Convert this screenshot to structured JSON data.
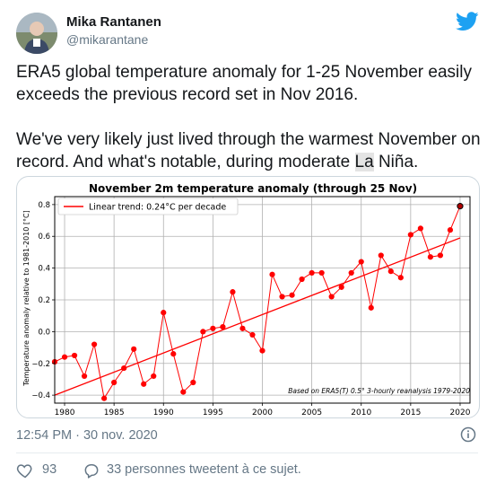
{
  "author": {
    "name": "Mika Rantanen",
    "handle": "@mikarantane"
  },
  "tweet": {
    "paragraph1": "ERA5 global temperature anomaly for 1-25 November easily exceeds the previous record set in Nov 2016.",
    "paragraph2_pre": "We've very likely just lived through the warmest November on record. And what's notable, during moderate ",
    "paragraph2_highlight": "La",
    "paragraph2_post": " Niña."
  },
  "timestamp": "12:54 PM · 30 nov. 2020",
  "likes": {
    "count": "93"
  },
  "retweets": {
    "label": "33 personnes tweetent à ce sujet."
  },
  "icons": {
    "bird": "twitter-bird-icon",
    "info": "info-icon",
    "heart": "heart-icon",
    "reply": "speech-bubble-icon"
  },
  "colors": {
    "twitter_blue": "#1da1f2",
    "series": "#ff0000",
    "text_secondary": "#657786"
  },
  "chart_data": {
    "type": "line",
    "title": "November 2m temperature anomaly (through 25 Nov)",
    "ylabel": "Temperature anomaly relative to 1981-2010 [°C]",
    "xlabel": "",
    "legend": "Linear trend: 0.24°C per decade",
    "legend_position": "top-left",
    "annotation": "Based on ERA5(T) 0.5° 3-hourly reanalysis 1979-2020",
    "grid": true,
    "xlim": [
      1979,
      2021
    ],
    "ylim": [
      -0.45,
      0.85
    ],
    "xticks": [
      1980,
      1985,
      1990,
      1995,
      2000,
      2005,
      2010,
      2015,
      2020
    ],
    "yticks": [
      -0.4,
      -0.2,
      0.0,
      0.2,
      0.4,
      0.6,
      0.8
    ],
    "ytick_labels": [
      "−0.4",
      "−0.2",
      "0.0",
      "0.2",
      "0.4",
      "0.6",
      "0.8"
    ],
    "x": [
      1979,
      1980,
      1981,
      1982,
      1983,
      1984,
      1985,
      1986,
      1987,
      1988,
      1989,
      1990,
      1991,
      1992,
      1993,
      1994,
      1995,
      1996,
      1997,
      1998,
      1999,
      2000,
      2001,
      2002,
      2003,
      2004,
      2005,
      2006,
      2007,
      2008,
      2009,
      2010,
      2011,
      2012,
      2013,
      2014,
      2015,
      2016,
      2017,
      2018,
      2019,
      2020
    ],
    "values": [
      -0.19,
      -0.16,
      -0.15,
      -0.28,
      -0.08,
      -0.42,
      -0.32,
      -0.23,
      -0.11,
      -0.33,
      -0.28,
      0.12,
      -0.14,
      -0.38,
      -0.32,
      0.0,
      0.02,
      0.03,
      0.25,
      0.02,
      -0.02,
      -0.12,
      0.36,
      0.22,
      0.23,
      0.33,
      0.37,
      0.37,
      0.22,
      0.28,
      0.37,
      0.44,
      0.15,
      0.48,
      0.38,
      0.34,
      0.61,
      0.65,
      0.47,
      0.48,
      0.64,
      0.79
    ],
    "trend": {
      "x": [
        1979,
        2020
      ],
      "y": [
        -0.4,
        0.59
      ]
    },
    "highlight_last": true
  }
}
